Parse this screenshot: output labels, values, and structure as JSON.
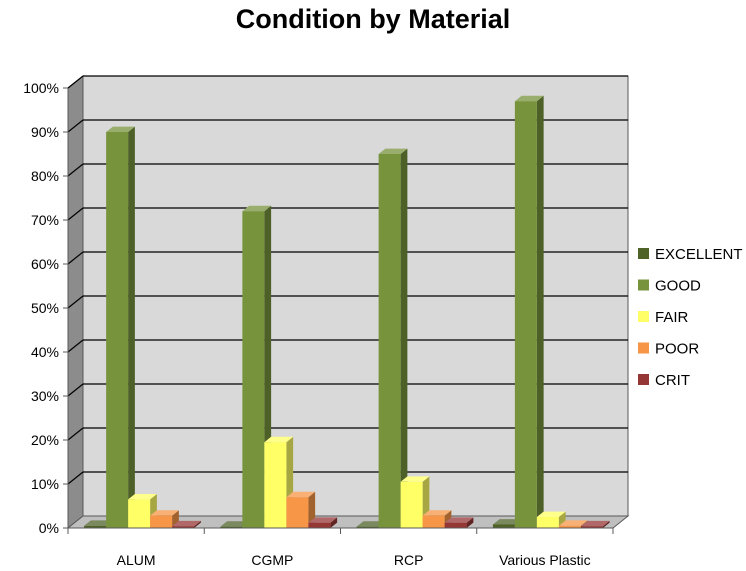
{
  "chart_data": {
    "type": "bar",
    "title": "Condition by Material",
    "xlabel": "",
    "ylabel": "",
    "categories": [
      "ALUM",
      "CGMP",
      "RCP",
      "Various Plastic"
    ],
    "series": [
      {
        "name": "EXCELLENT",
        "color": "#4f6228",
        "values": [
          0.5,
          0.3,
          0.3,
          0.8
        ]
      },
      {
        "name": "GOOD",
        "color": "#77933c",
        "values": [
          90,
          72,
          85,
          97
        ]
      },
      {
        "name": "FAIR",
        "color": "#ffff66",
        "values": [
          6.5,
          19.5,
          10.5,
          2.5
        ]
      },
      {
        "name": "POOR",
        "color": "#f79646",
        "values": [
          2.8,
          7,
          2.8,
          0.5
        ]
      },
      {
        "name": "CRIT",
        "color": "#953735",
        "values": [
          0.4,
          1.2,
          1.2,
          0.4
        ]
      }
    ],
    "ylim": [
      0,
      100
    ],
    "yticks": [
      "0%",
      "10%",
      "20%",
      "30%",
      "40%",
      "50%",
      "60%",
      "70%",
      "80%",
      "90%",
      "100%"
    ],
    "grid": true,
    "legend_position": "right"
  }
}
